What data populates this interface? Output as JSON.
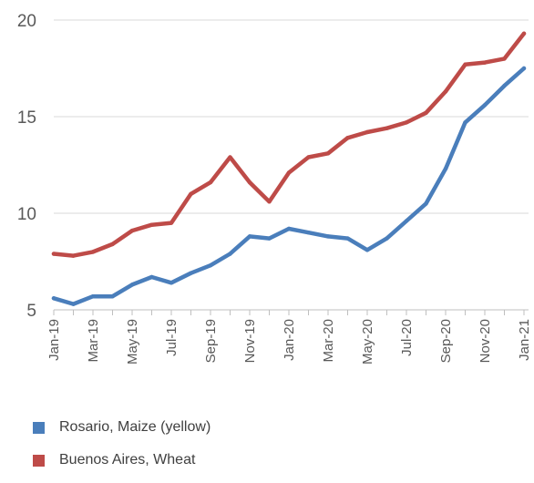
{
  "chart_data": {
    "type": "line",
    "title": "",
    "xlabel": "",
    "ylabel": "",
    "ylim": [
      5,
      20
    ],
    "y_ticks": [
      "5",
      "10",
      "15",
      "20"
    ],
    "grid": "horizontal",
    "legend_position": "bottom",
    "x": [
      "Jan-19",
      "Feb-19",
      "Mar-19",
      "Apr-19",
      "May-19",
      "Jun-19",
      "Jul-19",
      "Aug-19",
      "Sep-19",
      "Oct-19",
      "Nov-19",
      "Dec-19",
      "Jan-20",
      "Feb-20",
      "Mar-20",
      "Apr-20",
      "May-20",
      "Jun-20",
      "Jul-20",
      "Aug-20",
      "Sep-20",
      "Oct-20",
      "Nov-20",
      "Dec-20",
      "Jan-21"
    ],
    "x_tick_labels": [
      "Jan-19",
      "Mar-19",
      "May-19",
      "Jul-19",
      "Sep-19",
      "Nov-19",
      "Jan-20",
      "Mar-20",
      "May-20",
      "Jul-20",
      "Sep-20",
      "Nov-20",
      "Jan-21"
    ],
    "series": [
      {
        "name": "Rosario, Maize (yellow)",
        "color": "#4a7ebb",
        "values": [
          5.6,
          5.3,
          5.7,
          5.7,
          6.3,
          6.7,
          6.4,
          6.9,
          7.3,
          7.9,
          8.8,
          8.7,
          9.2,
          9.0,
          8.8,
          8.7,
          8.1,
          8.7,
          9.6,
          10.5,
          12.3,
          14.7,
          15.6,
          16.6,
          17.5
        ]
      },
      {
        "name": "Buenos Aires, Wheat",
        "color": "#be4b48",
        "values": [
          7.9,
          7.8,
          8.0,
          8.4,
          9.1,
          9.4,
          9.5,
          11.0,
          11.6,
          12.9,
          11.6,
          10.6,
          12.1,
          12.9,
          13.1,
          13.9,
          14.2,
          14.4,
          14.7,
          15.2,
          16.3,
          17.7,
          17.8,
          18.0,
          19.3
        ]
      }
    ]
  }
}
